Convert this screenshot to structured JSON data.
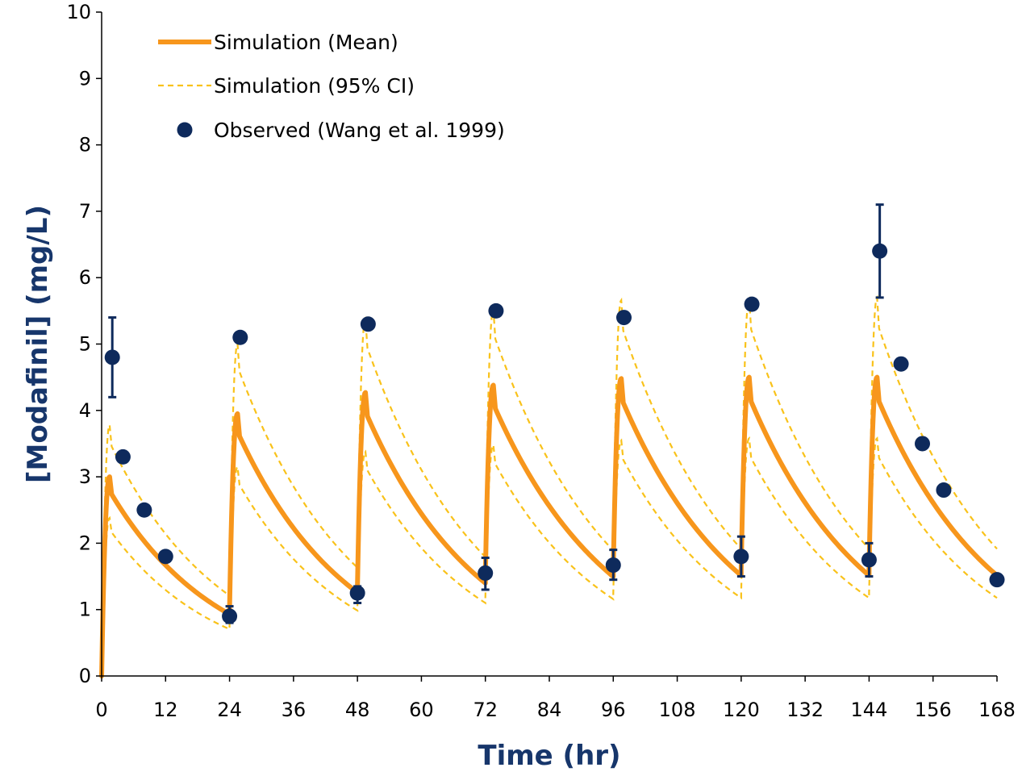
{
  "colors": {
    "mean": "#F7961C",
    "ci": "#F9C21A",
    "observed": "#0E2A5C",
    "axis": "#000000",
    "axis_title": "#17366B"
  },
  "chart_data": {
    "type": "line",
    "title": "",
    "xlabel": "Time (hr)",
    "ylabel": "[Modafinil] (mg/L)",
    "xlim": [
      0,
      168
    ],
    "ylim": [
      0,
      10
    ],
    "xticks": [
      0,
      12,
      24,
      36,
      48,
      60,
      72,
      84,
      96,
      108,
      120,
      132,
      144,
      156,
      168
    ],
    "yticks": [
      0,
      1,
      2,
      3,
      4,
      5,
      6,
      7,
      8,
      9,
      10
    ],
    "legend": {
      "position": "top-left",
      "entries": [
        {
          "label": "Simulation (Mean)",
          "style": "solid-line"
        },
        {
          "label": "Simulation (95% CI)",
          "style": "dashed-line"
        },
        {
          "label": "Observed (Wang et al. 1999)",
          "style": "marker"
        }
      ]
    },
    "series": [
      {
        "name": "Simulation (Mean)",
        "dosing": {
          "interval": 24,
          "doses": 7,
          "peak_time_after_dose": 1.5
        },
        "peaks": [
          3.0,
          3.95,
          4.27,
          4.38,
          4.48,
          4.5,
          4.5
        ],
        "troughs": [
          0.0,
          1.0,
          1.35,
          1.5,
          1.6,
          1.62,
          1.62,
          1.62
        ]
      },
      {
        "name": "Simulation (95% CI) upper",
        "dosing": {
          "interval": 24,
          "doses": 7,
          "peak_time_after_dose": 1.5
        },
        "peaks": [
          3.78,
          5.0,
          5.38,
          5.52,
          5.66,
          5.68,
          5.7
        ],
        "troughs": [
          0.0,
          1.3,
          1.75,
          1.92,
          2.02,
          2.05,
          2.05,
          2.05
        ]
      },
      {
        "name": "Simulation (95% CI) lower",
        "dosing": {
          "interval": 24,
          "doses": 7,
          "peak_time_after_dose": 1.5
        },
        "peaks": [
          2.38,
          3.15,
          3.38,
          3.48,
          3.55,
          3.58,
          3.58
        ],
        "troughs": [
          0.0,
          0.76,
          1.06,
          1.18,
          1.24,
          1.26,
          1.26,
          1.26
        ]
      },
      {
        "name": "Observed (Wang et al. 1999)",
        "points": [
          {
            "x": 2,
            "y": 4.8,
            "err_low": 4.2,
            "err_high": 5.4
          },
          {
            "x": 4,
            "y": 3.3
          },
          {
            "x": 8,
            "y": 2.5
          },
          {
            "x": 12,
            "y": 1.8
          },
          {
            "x": 24,
            "y": 0.9,
            "err_low": 0.8,
            "err_high": 1.05
          },
          {
            "x": 26,
            "y": 5.1
          },
          {
            "x": 48,
            "y": 1.25,
            "err_low": 1.1,
            "err_high": 1.35
          },
          {
            "x": 50,
            "y": 5.3
          },
          {
            "x": 72,
            "y": 1.55,
            "err_low": 1.3,
            "err_high": 1.78
          },
          {
            "x": 74,
            "y": 5.5
          },
          {
            "x": 96,
            "y": 1.67,
            "err_low": 1.45,
            "err_high": 1.9
          },
          {
            "x": 98,
            "y": 5.4
          },
          {
            "x": 120,
            "y": 1.8,
            "err_low": 1.5,
            "err_high": 2.1
          },
          {
            "x": 122,
            "y": 5.6
          },
          {
            "x": 144,
            "y": 1.75,
            "err_low": 1.5,
            "err_high": 2.0
          },
          {
            "x": 146,
            "y": 6.4,
            "err_low": 5.7,
            "err_high": 7.1
          },
          {
            "x": 150,
            "y": 4.7
          },
          {
            "x": 154,
            "y": 3.5
          },
          {
            "x": 158,
            "y": 2.8
          },
          {
            "x": 168,
            "y": 1.45
          }
        ]
      }
    ]
  }
}
